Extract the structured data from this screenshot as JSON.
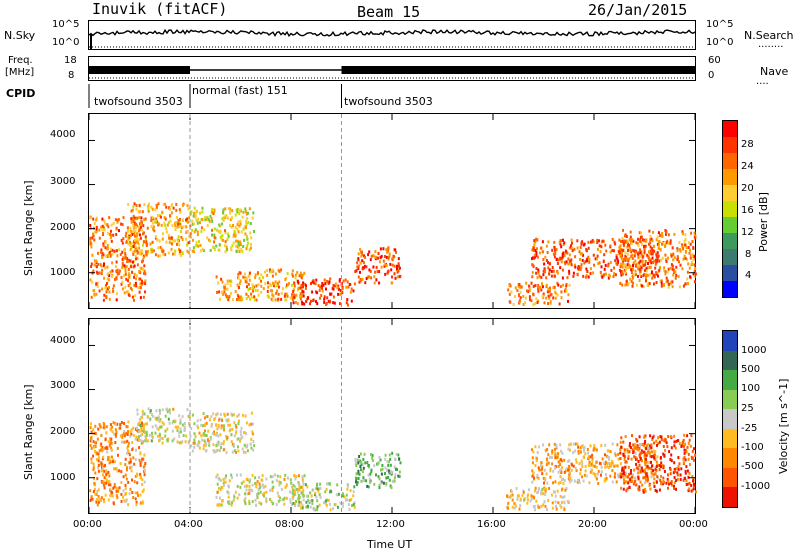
{
  "header": {
    "station": "Inuvik (fitACF)",
    "beam": "Beam 15",
    "date": "26/Jan/2015"
  },
  "nsky_panel": {
    "left_label": "N.Sky",
    "left_ticks": [
      "10^5",
      "10^0"
    ],
    "right_ticks": [
      "10^5",
      "10^0"
    ],
    "right_label": "N.Search",
    "right_legend_line": "........"
  },
  "freq_panel": {
    "left_label_1": "Freq.",
    "left_label_2": "[MHz]",
    "left_ticks": [
      "18",
      "8"
    ],
    "right_ticks": [
      "60",
      "0"
    ],
    "right_label": "Nave",
    "right_legend_line": "...."
  },
  "cpid": {
    "label": "CPID",
    "segments": [
      {
        "start_hour": 0,
        "end_hour": 4,
        "text": "twofsound 3503"
      },
      {
        "start_hour": 4,
        "end_hour": 10,
        "text": "normal (fast) 151"
      },
      {
        "start_hour": 10,
        "end_hour": 24,
        "text": "twofsound 3503"
      }
    ]
  },
  "xaxis": {
    "label": "Time UT",
    "ticks": [
      "00:00",
      "04:00",
      "08:00",
      "12:00",
      "16:00",
      "20:00",
      "00:00"
    ],
    "tick_hours": [
      0,
      4,
      8,
      12,
      16,
      20,
      24
    ]
  },
  "power_panel": {
    "ylabel": "Slant Range [km]",
    "yticks": [
      "4000",
      "3000",
      "2000",
      "1000"
    ],
    "colorbar_label": "Power [dB]",
    "colorbar_ticks": [
      "28",
      "24",
      "20",
      "16",
      "12",
      "8",
      "4"
    ],
    "colorbar_colors": [
      "#ff0000",
      "#ff3300",
      "#ff6600",
      "#ff9900",
      "#ffcc33",
      "#c8e000",
      "#66cc33",
      "#3c9a5c",
      "#3d7a6f",
      "#2a4ea0",
      "#0000ff"
    ]
  },
  "velocity_panel": {
    "ylabel": "Slant Range [km]",
    "yticks": [
      "4000",
      "3000",
      "2000",
      "1000"
    ],
    "colorbar_label": "Velocity [m s^-1]",
    "colorbar_ticks": [
      "1000",
      "500",
      "100",
      "25",
      "-25",
      "-100",
      "-500",
      "-1000"
    ],
    "colorbar_colors": [
      "#2244bb",
      "#336655",
      "#44aa44",
      "#88cc55",
      "#c8c8c8",
      "#ffbb22",
      "#ff8800",
      "#ff5500",
      "#ee1100"
    ]
  },
  "chart_data": {
    "type": "heatmap",
    "title": "Inuvik (fitACF)  Beam 15  26/Jan/2015",
    "xlabel": "Time UT",
    "ylabel": "Slant Range [km]",
    "xlim_hours": [
      0,
      24
    ],
    "ylim_km": [
      200,
      4600
    ],
    "panels": [
      {
        "name": "Power",
        "unit": "dB",
        "color_range": [
          0,
          32
        ],
        "echo_regions": [
          {
            "t0": 0.0,
            "t1": 2.2,
            "r0": 400,
            "r1": 2300,
            "value": 24
          },
          {
            "t0": 1.5,
            "t1": 4.0,
            "r0": 1400,
            "r1": 2600,
            "value": 22
          },
          {
            "t0": 4.0,
            "t1": 6.5,
            "r0": 1500,
            "r1": 2500,
            "value": 18
          },
          {
            "t0": 5.0,
            "t1": 8.5,
            "r0": 400,
            "r1": 1100,
            "value": 22
          },
          {
            "t0": 8.0,
            "t1": 10.5,
            "r0": 300,
            "r1": 900,
            "value": 28
          },
          {
            "t0": 10.5,
            "t1": 12.3,
            "r0": 800,
            "r1": 1600,
            "value": 26
          },
          {
            "t0": 16.5,
            "t1": 19.0,
            "r0": 300,
            "r1": 800,
            "value": 24
          },
          {
            "t0": 17.5,
            "t1": 22.5,
            "r0": 900,
            "r1": 1800,
            "value": 26
          },
          {
            "t0": 21.0,
            "t1": 24.0,
            "r0": 700,
            "r1": 2000,
            "value": 24
          }
        ]
      },
      {
        "name": "Velocity",
        "unit": "m s^-1",
        "color_range": [
          -1000,
          1000
        ],
        "echo_regions": [
          {
            "t0": 0.0,
            "t1": 2.2,
            "r0": 400,
            "r1": 2300,
            "value": -400
          },
          {
            "t0": 1.8,
            "t1": 4.0,
            "r0": 1800,
            "r1": 2600,
            "value": 0
          },
          {
            "t0": 4.0,
            "t1": 6.5,
            "r0": 1600,
            "r1": 2500,
            "value": -100
          },
          {
            "t0": 5.0,
            "t1": 8.5,
            "r0": 400,
            "r1": 1100,
            "value": -50
          },
          {
            "t0": 8.0,
            "t1": 10.5,
            "r0": 300,
            "r1": 900,
            "value": 100
          },
          {
            "t0": 10.5,
            "t1": 12.3,
            "r0": 800,
            "r1": 1600,
            "value": 300
          },
          {
            "t0": 16.5,
            "t1": 19.0,
            "r0": 300,
            "r1": 800,
            "value": -200
          },
          {
            "t0": 17.5,
            "t1": 22.5,
            "r0": 900,
            "r1": 1800,
            "value": -300
          },
          {
            "t0": 21.0,
            "t1": 24.0,
            "r0": 700,
            "r1": 2000,
            "value": -700
          }
        ]
      }
    ]
  }
}
